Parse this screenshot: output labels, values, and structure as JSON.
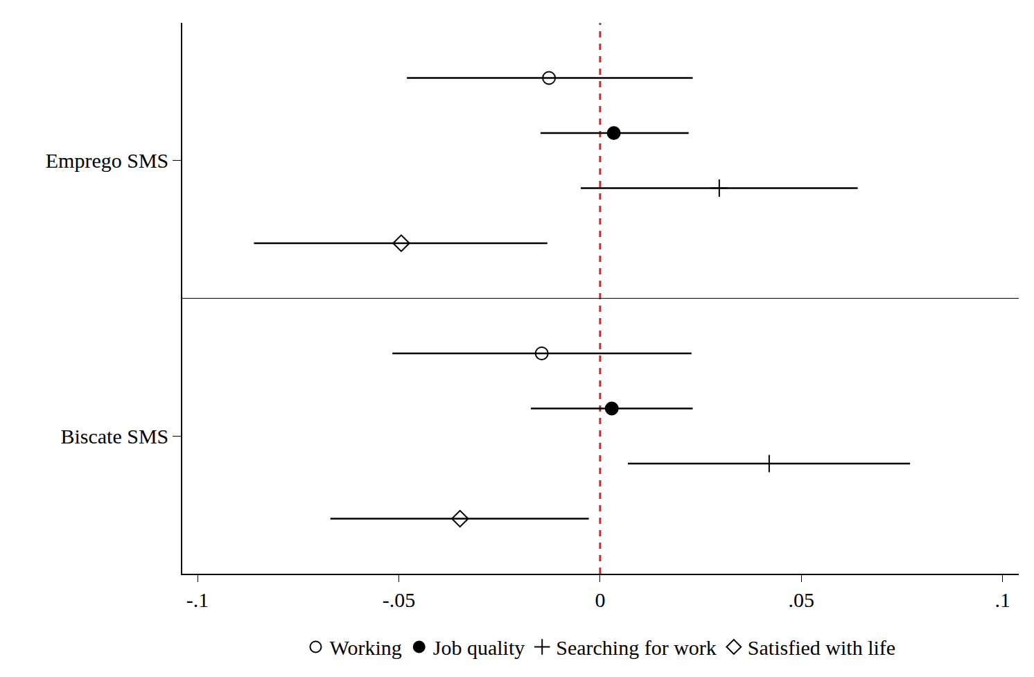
{
  "chart_data": {
    "type": "coefficient",
    "orientation": "horizontal",
    "categories": [
      "Emprego SMS",
      "Biscate SMS"
    ],
    "series": [
      {
        "name": "Working",
        "color": "#000000",
        "marker": "circle-open",
        "values": [
          -0.0127,
          -0.0145
        ],
        "ci_low": [
          -0.048,
          -0.0516
        ],
        "ci_high": [
          0.023,
          0.0227
        ]
      },
      {
        "name": "Job quality",
        "color": "#000000",
        "marker": "circle",
        "values": [
          0.0034,
          0.0029
        ],
        "ci_low": [
          -0.0148,
          -0.0172
        ],
        "ci_high": [
          0.022,
          0.023
        ]
      },
      {
        "name": "Searching for work",
        "color": "#000000",
        "marker": "cross-thin-open",
        "values": [
          0.0296,
          0.042
        ],
        "ci_low": [
          -0.0048,
          0.0069
        ],
        "ci_high": [
          0.064,
          0.077
        ]
      },
      {
        "name": "Satisfied with life",
        "color": "#000000",
        "marker": "diamond-open",
        "values": [
          -0.0494,
          -0.0348
        ],
        "ci_low": [
          -0.086,
          -0.067
        ],
        "ci_high": [
          -0.0131,
          -0.0028
        ]
      }
    ],
    "reference_line": 0,
    "xlim": [
      -0.1038,
      0.104
    ],
    "xticks": [
      {
        "value": -0.1,
        "label": "-.1"
      },
      {
        "value": -0.05,
        "label": "-.05"
      },
      0,
      {
        "value": 0.05,
        "label": ".05"
      },
      {
        "value": 0.1,
        "label": ".1"
      }
    ],
    "grid": false,
    "legend": "bottom"
  }
}
